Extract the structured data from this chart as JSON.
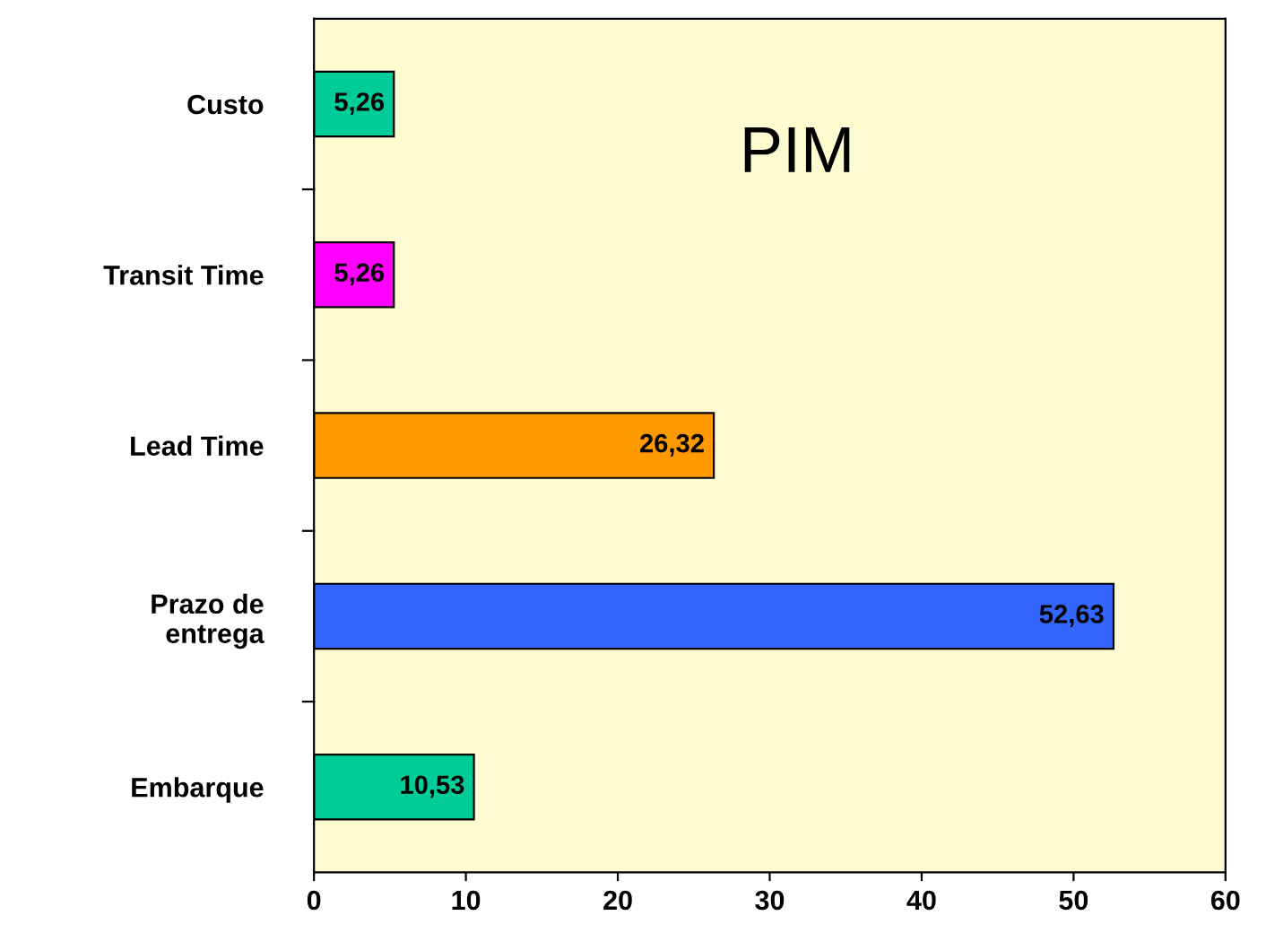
{
  "chart_data": {
    "type": "bar",
    "orientation": "horizontal",
    "title": "PIM",
    "categories": [
      "Custo",
      "Transit Time",
      "Lead Time",
      "Prazo de\nentrega",
      "Embarque"
    ],
    "values": [
      5.26,
      5.26,
      26.32,
      52.63,
      10.53
    ],
    "colors": [
      "#00cc99",
      "#ff00ff",
      "#ff9900",
      "#3366ff",
      "#00cc99"
    ],
    "value_labels": [
      "5,26",
      "5,26",
      "26,32",
      "52,63",
      "10,53"
    ],
    "xlim": [
      0,
      60
    ],
    "xticks": [
      0,
      10,
      20,
      30,
      40,
      50,
      60
    ],
    "grid": false
  }
}
